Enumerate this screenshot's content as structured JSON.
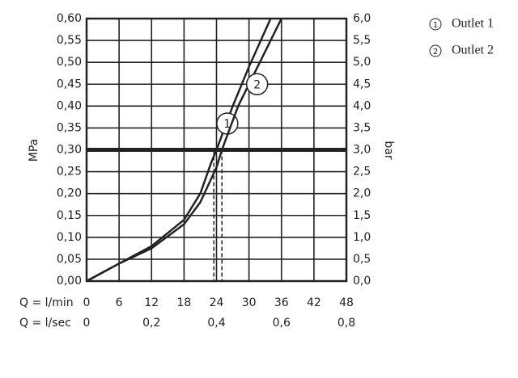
{
  "chart_data": {
    "type": "line",
    "x_label": "Q = l/min",
    "x2_label": "Q = l/sec",
    "y_label": "MPa",
    "y2_label": "bar",
    "xlim": [
      0,
      48
    ],
    "xticks": [
      0,
      6,
      12,
      18,
      24,
      30,
      36,
      42,
      48
    ],
    "x2lim": [
      0,
      0.8
    ],
    "x2ticks": [
      0,
      {
        "value": 0.2,
        "label": "0,2"
      },
      {
        "value": 0.4,
        "label": "0,4"
      },
      {
        "value": 0.6,
        "label": "0,6"
      },
      {
        "value": 0.8,
        "label": "0,8"
      }
    ],
    "ylim": [
      0,
      0.6
    ],
    "yticks": [
      {
        "value": 0,
        "label": "0,00"
      },
      {
        "value": 0.05,
        "label": "0,05"
      },
      {
        "value": 0.1,
        "label": "0,10"
      },
      {
        "value": 0.15,
        "label": "0,15"
      },
      {
        "value": 0.2,
        "label": "0,20"
      },
      {
        "value": 0.25,
        "label": "0,25"
      },
      {
        "value": 0.3,
        "label": "0,30"
      },
      {
        "value": 0.35,
        "label": "0,35"
      },
      {
        "value": 0.4,
        "label": "0,40"
      },
      {
        "value": 0.45,
        "label": "0,45"
      },
      {
        "value": 0.5,
        "label": "0,50"
      },
      {
        "value": 0.55,
        "label": "0,55"
      },
      {
        "value": 0.6,
        "label": "0,60"
      }
    ],
    "y2lim": [
      0,
      6
    ],
    "y2ticks": [
      {
        "value": 0,
        "label": "0,0"
      },
      {
        "value": 0.5,
        "label": "0,5"
      },
      {
        "value": 1,
        "label": "1,0"
      },
      {
        "value": 1.5,
        "label": "1,5"
      },
      {
        "value": 2,
        "label": "2,0"
      },
      {
        "value": 2.5,
        "label": "2,5"
      },
      {
        "value": 3,
        "label": "3,0"
      },
      {
        "value": 3.5,
        "label": "3,5"
      },
      {
        "value": 4,
        "label": "4,0"
      },
      {
        "value": 4.5,
        "label": "4,5"
      },
      {
        "value": 5,
        "label": "5,0"
      },
      {
        "value": 5.5,
        "label": "5,5"
      },
      {
        "value": 6,
        "label": "6,0"
      }
    ],
    "grid": true,
    "color": "#222222",
    "reference_y": 0.3,
    "reference_x": [
      23.5,
      25
    ],
    "series": [
      {
        "name": "Outlet 1",
        "marker": "1",
        "marker_at": [
          26,
          0.36
        ],
        "x": [
          0,
          6,
          12,
          18,
          21,
          23,
          24,
          27,
          30,
          34
        ],
        "values": [
          0,
          0.04,
          0.08,
          0.14,
          0.2,
          0.27,
          0.3,
          0.4,
          0.49,
          0.6
        ]
      },
      {
        "name": "Outlet 2",
        "marker": "2",
        "marker_at": [
          31.5,
          0.45
        ],
        "x": [
          0,
          6,
          12,
          18,
          21,
          24,
          25,
          28,
          32,
          36
        ],
        "values": [
          0,
          0.04,
          0.075,
          0.13,
          0.18,
          0.26,
          0.3,
          0.4,
          0.5,
          0.6
        ]
      }
    ]
  }
}
